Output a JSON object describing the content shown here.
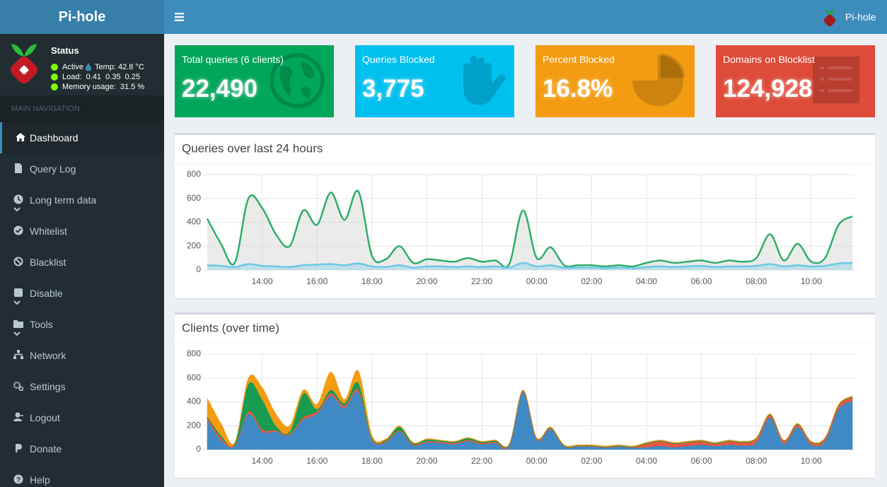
{
  "header": {
    "brand": "Pi-hole",
    "user": "Pi-hole"
  },
  "sidebar": {
    "status": {
      "title": "Status",
      "active": "Active",
      "temp": "Temp: 42.8 °C",
      "load": "Load:  0.41  0.35  0.25",
      "memory": "Memory usage:  31.5 %"
    },
    "nav_header": "MAIN NAVIGATION",
    "menu": [
      "Dashboard",
      "Query Log",
      "Long term data",
      "Whitelist",
      "Blacklist",
      "Disable",
      "Tools",
      "Network",
      "Settings",
      "Logout",
      "Donate",
      "Help"
    ]
  },
  "stats": [
    {
      "title": "Total queries (6 clients)",
      "value": "22,490",
      "color": "#00a65a"
    },
    {
      "title": "Queries Blocked",
      "value": "3,775",
      "color": "#00c0ef"
    },
    {
      "title": "Percent Blocked",
      "value": "16.8%",
      "color": "#f39c12"
    },
    {
      "title": "Domains on Blocklist",
      "value": "124,928",
      "color": "#dd4b39"
    }
  ],
  "charts": [
    {
      "type": "line",
      "title": "Queries over last 24 hours",
      "x": [
        12,
        12.5,
        13,
        13.5,
        14,
        14.5,
        15,
        15.5,
        16,
        16.5,
        17,
        17.5,
        18,
        18.5,
        19,
        19.5,
        20,
        20.5,
        21,
        21.5,
        22,
        22.5,
        23,
        23.5,
        24,
        24.5,
        25,
        25.5,
        26,
        26.5,
        27,
        27.5,
        28,
        28.5,
        29,
        29.5,
        30,
        30.5,
        31,
        31.5,
        32,
        32.5,
        33,
        33.5,
        34,
        34.5,
        35,
        35.5
      ],
      "series": [
        {
          "color": "#2fae6a",
          "fill": "rgba(210,210,210,0.45)",
          "values": [
            430,
            220,
            60,
            600,
            520,
            300,
            200,
            500,
            380,
            650,
            420,
            660,
            120,
            90,
            200,
            60,
            90,
            80,
            70,
            100,
            70,
            80,
            50,
            500,
            100,
            190,
            40,
            40,
            40,
            30,
            40,
            30,
            60,
            80,
            60,
            70,
            80,
            60,
            80,
            70,
            100,
            300,
            80,
            220,
            70,
            100,
            380,
            450
          ]
        },
        {
          "color": "#6cc8e6",
          "fill": "rgba(108,200,230,0.35)",
          "values": [
            40,
            35,
            25,
            50,
            35,
            30,
            25,
            40,
            45,
            50,
            40,
            55,
            30,
            25,
            40,
            20,
            30,
            30,
            25,
            30,
            25,
            30,
            20,
            60,
            30,
            40,
            20,
            20,
            20,
            15,
            20,
            15,
            25,
            30,
            25,
            30,
            35,
            25,
            30,
            30,
            35,
            50,
            30,
            40,
            30,
            35,
            55,
            60
          ]
        }
      ],
      "xlim": [
        12,
        35.6
      ],
      "xticks": [
        {
          "value": 14,
          "label": "14:00"
        },
        {
          "value": 16,
          "label": "16:00"
        },
        {
          "value": 18,
          "label": "18:00"
        },
        {
          "value": 20,
          "label": "20:00"
        },
        {
          "value": 22,
          "label": "22:00"
        },
        {
          "value": 24,
          "label": "00:00"
        },
        {
          "value": 26,
          "label": "02:00"
        },
        {
          "value": 28,
          "label": "04:00"
        },
        {
          "value": 30,
          "label": "06:00"
        },
        {
          "value": 32,
          "label": "08:00"
        },
        {
          "value": 34,
          "label": "10:00"
        }
      ],
      "ylim": [
        0,
        800
      ],
      "yticks": [
        0,
        200,
        400,
        600,
        800
      ],
      "grid": true
    },
    {
      "type": "area",
      "stacked": true,
      "title": "Clients (over time)",
      "x": [
        12,
        12.5,
        13,
        13.5,
        14,
        14.5,
        15,
        15.5,
        16,
        16.5,
        17,
        17.5,
        18,
        18.5,
        19,
        19.5,
        20,
        20.5,
        21,
        21.5,
        22,
        22.5,
        23,
        23.5,
        24,
        24.5,
        25,
        25.5,
        26,
        26.5,
        27,
        27.5,
        28,
        28.5,
        29,
        29.5,
        30,
        30.5,
        31,
        31.5,
        32,
        32.5,
        33,
        33.5,
        34,
        34.5,
        35,
        35.5
      ],
      "series": [
        {
          "color": "#3f89c4",
          "values": [
            250,
            80,
            30,
            300,
            150,
            150,
            120,
            250,
            300,
            450,
            350,
            480,
            80,
            60,
            150,
            35,
            60,
            55,
            45,
            70,
            45,
            55,
            30,
            480,
            80,
            170,
            25,
            25,
            25,
            15,
            25,
            15,
            20,
            30,
            20,
            30,
            40,
            30,
            40,
            35,
            60,
            270,
            50,
            190,
            40,
            70,
            340,
            410
          ]
        },
        {
          "color": "#e8583f",
          "values": [
            20,
            20,
            10,
            20,
            20,
            10,
            10,
            20,
            20,
            20,
            20,
            20,
            10,
            10,
            10,
            10,
            10,
            10,
            10,
            10,
            10,
            10,
            10,
            10,
            10,
            10,
            5,
            5,
            5,
            5,
            5,
            5,
            30,
            40,
            30,
            30,
            30,
            20,
            30,
            25,
            30,
            20,
            20,
            20,
            20,
            20,
            30,
            30
          ]
        },
        {
          "color": "#179c52",
          "values": [
            10,
            20,
            10,
            230,
            250,
            40,
            20,
            200,
            20,
            30,
            20,
            60,
            10,
            10,
            30,
            10,
            15,
            10,
            10,
            15,
            10,
            10,
            5,
            5,
            5,
            5,
            5,
            5,
            5,
            5,
            5,
            5,
            5,
            5,
            5,
            5,
            5,
            5,
            5,
            5,
            5,
            5,
            5,
            5,
            5,
            5,
            5,
            5
          ]
        },
        {
          "color": "#f39c12",
          "values": [
            150,
            100,
            10,
            50,
            100,
            100,
            50,
            30,
            40,
            150,
            30,
            100,
            20,
            10,
            10,
            5,
            5,
            5,
            5,
            5,
            5,
            5,
            5,
            5,
            5,
            5,
            5,
            5,
            5,
            5,
            5,
            5,
            5,
            5,
            5,
            5,
            5,
            5,
            5,
            5,
            5,
            5,
            5,
            5,
            5,
            5,
            5,
            5
          ]
        }
      ],
      "xlim": [
        12,
        35.6
      ],
      "xticks": [
        {
          "value": 14,
          "label": "14:00"
        },
        {
          "value": 16,
          "label": "16:00"
        },
        {
          "value": 18,
          "label": "18:00"
        },
        {
          "value": 20,
          "label": "20:00"
        },
        {
          "value": 22,
          "label": "22:00"
        },
        {
          "value": 24,
          "label": "00:00"
        },
        {
          "value": 26,
          "label": "02:00"
        },
        {
          "value": 28,
          "label": "04:00"
        },
        {
          "value": 30,
          "label": "06:00"
        },
        {
          "value": 32,
          "label": "08:00"
        },
        {
          "value": 34,
          "label": "10:00"
        }
      ],
      "ylim": [
        0,
        800
      ],
      "yticks": [
        0,
        200,
        400,
        600,
        800
      ],
      "grid": true
    }
  ]
}
